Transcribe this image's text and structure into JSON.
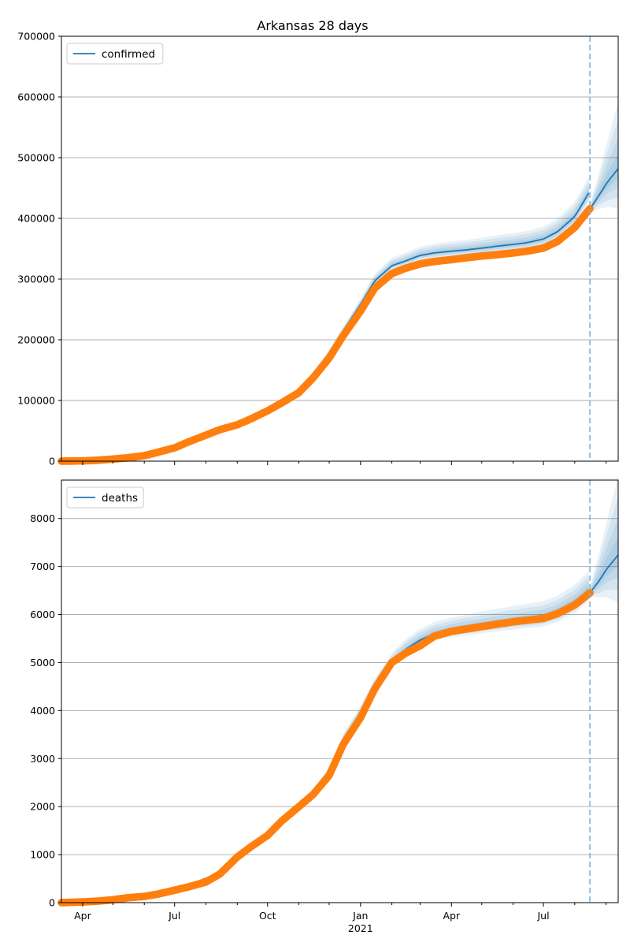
{
  "title": "Arkansas 28 days",
  "chart_data": [
    {
      "type": "line",
      "legend_label": "confirmed",
      "legend_placement": "upper-left",
      "grid": "horizontal",
      "ylim": [
        0,
        700000
      ],
      "yticks": [
        0,
        100000,
        200000,
        300000,
        400000,
        500000,
        600000,
        700000
      ],
      "forecast_start": "2021-08-16",
      "model_mean": [
        [
          "2020-03-11",
          0
        ],
        [
          "2020-04-15",
          1000
        ],
        [
          "2020-05-15",
          5000
        ],
        [
          "2020-06-15",
          17000
        ],
        [
          "2020-07-15",
          34000
        ],
        [
          "2020-08-15",
          53000
        ],
        [
          "2020-09-15",
          73000
        ],
        [
          "2020-10-15",
          98000
        ],
        [
          "2020-11-01",
          118000
        ],
        [
          "2020-11-15",
          142000
        ],
        [
          "2020-12-01",
          178000
        ],
        [
          "2020-12-15",
          215000
        ],
        [
          "2021-01-01",
          258000
        ],
        [
          "2021-01-15",
          297000
        ],
        [
          "2021-02-01",
          322000
        ],
        [
          "2021-02-15",
          330000
        ],
        [
          "2021-03-01",
          339000
        ],
        [
          "2021-03-15",
          343000
        ],
        [
          "2021-04-01",
          346000
        ],
        [
          "2021-04-15",
          348000
        ],
        [
          "2021-05-01",
          351000
        ],
        [
          "2021-05-15",
          354000
        ],
        [
          "2021-06-01",
          357000
        ],
        [
          "2021-06-15",
          360000
        ],
        [
          "2021-07-01",
          366000
        ],
        [
          "2021-07-15",
          378000
        ],
        [
          "2021-08-01",
          403000
        ],
        [
          "2021-08-15",
          442000
        ]
      ],
      "forecast_mean": [
        [
          "2021-08-16",
          415000
        ],
        [
          "2021-08-25",
          438000
        ],
        [
          "2021-09-02",
          459000
        ],
        [
          "2021-09-13",
          482000
        ]
      ],
      "observed": [
        [
          "2020-03-11",
          0
        ],
        [
          "2020-04-01",
          500
        ],
        [
          "2020-04-15",
          1500
        ],
        [
          "2020-05-01",
          3500
        ],
        [
          "2020-05-15",
          5500
        ],
        [
          "2020-06-01",
          9000
        ],
        [
          "2020-06-15",
          15000
        ],
        [
          "2020-07-01",
          22000
        ],
        [
          "2020-07-15",
          32000
        ],
        [
          "2020-08-01",
          43000
        ],
        [
          "2020-08-15",
          52000
        ],
        [
          "2020-09-01",
          60000
        ],
        [
          "2020-09-15",
          70000
        ],
        [
          "2020-10-01",
          83000
        ],
        [
          "2020-10-15",
          96000
        ],
        [
          "2020-11-01",
          113000
        ],
        [
          "2020-11-15",
          137000
        ],
        [
          "2020-12-01",
          170000
        ],
        [
          "2020-12-15",
          207000
        ],
        [
          "2021-01-01",
          247000
        ],
        [
          "2021-01-15",
          285000
        ],
        [
          "2021-02-01",
          309000
        ],
        [
          "2021-02-15",
          318000
        ],
        [
          "2021-03-01",
          325000
        ],
        [
          "2021-03-15",
          329000
        ],
        [
          "2021-04-01",
          332000
        ],
        [
          "2021-04-15",
          335000
        ],
        [
          "2021-05-01",
          338000
        ],
        [
          "2021-05-15",
          340000
        ],
        [
          "2021-06-01",
          343000
        ],
        [
          "2021-06-15",
          346000
        ],
        [
          "2021-07-01",
          351000
        ],
        [
          "2021-07-15",
          362000
        ],
        [
          "2021-08-01",
          385000
        ],
        [
          "2021-08-16",
          416000
        ]
      ]
    },
    {
      "type": "line",
      "legend_label": "deaths",
      "legend_placement": "upper-left",
      "grid": "horizontal",
      "ylim": [
        0,
        8800
      ],
      "yticks": [
        0,
        1000,
        2000,
        3000,
        4000,
        5000,
        6000,
        7000,
        8000
      ],
      "forecast_start": "2021-08-16",
      "model_mean": [
        [
          "2020-03-11",
          0
        ],
        [
          "2020-04-15",
          30
        ],
        [
          "2020-05-15",
          100
        ],
        [
          "2020-06-15",
          180
        ],
        [
          "2020-07-15",
          370
        ],
        [
          "2020-08-15",
          620
        ],
        [
          "2020-09-15",
          1170
        ],
        [
          "2020-10-15",
          1700
        ],
        [
          "2020-11-15",
          2250
        ],
        [
          "2020-12-01",
          2750
        ],
        [
          "2020-12-15",
          3400
        ],
        [
          "2021-01-01",
          3950
        ],
        [
          "2021-01-15",
          4500
        ],
        [
          "2021-02-01",
          5000
        ],
        [
          "2021-02-15",
          5280
        ],
        [
          "2021-03-01",
          5470
        ],
        [
          "2021-03-15",
          5600
        ],
        [
          "2021-04-01",
          5680
        ],
        [
          "2021-05-01",
          5780
        ],
        [
          "2021-06-01",
          5870
        ],
        [
          "2021-07-01",
          5950
        ],
        [
          "2021-07-15",
          6050
        ],
        [
          "2021-08-01",
          6250
        ],
        [
          "2021-08-15",
          6520
        ]
      ],
      "forecast_mean": [
        [
          "2021-08-16",
          6450
        ],
        [
          "2021-08-25",
          6700
        ],
        [
          "2021-09-02",
          6960
        ],
        [
          "2021-09-13",
          7240
        ]
      ],
      "observed": [
        [
          "2020-03-11",
          0
        ],
        [
          "2020-04-01",
          15
        ],
        [
          "2020-04-15",
          30
        ],
        [
          "2020-05-01",
          60
        ],
        [
          "2020-05-15",
          100
        ],
        [
          "2020-06-01",
          130
        ],
        [
          "2020-06-15",
          180
        ],
        [
          "2020-07-01",
          260
        ],
        [
          "2020-07-15",
          330
        ],
        [
          "2020-08-01",
          430
        ],
        [
          "2020-08-15",
          600
        ],
        [
          "2020-09-01",
          950
        ],
        [
          "2020-09-15",
          1170
        ],
        [
          "2020-10-01",
          1400
        ],
        [
          "2020-10-15",
          1700
        ],
        [
          "2020-11-01",
          2000
        ],
        [
          "2020-11-15",
          2250
        ],
        [
          "2020-12-01",
          2650
        ],
        [
          "2020-12-15",
          3300
        ],
        [
          "2021-01-01",
          3850
        ],
        [
          "2021-01-15",
          4450
        ],
        [
          "2021-02-01",
          5000
        ],
        [
          "2021-02-15",
          5200
        ],
        [
          "2021-03-01",
          5350
        ],
        [
          "2021-03-15",
          5550
        ],
        [
          "2021-04-01",
          5650
        ],
        [
          "2021-05-01",
          5750
        ],
        [
          "2021-06-01",
          5850
        ],
        [
          "2021-07-01",
          5920
        ],
        [
          "2021-07-15",
          6020
        ],
        [
          "2021-08-01",
          6200
        ],
        [
          "2021-08-16",
          6450
        ]
      ]
    }
  ],
  "xaxis": {
    "xlim": [
      "2020-03-11",
      "2021-09-13"
    ],
    "major_ticks": [
      {
        "date": "2020-04-01",
        "label": "Apr"
      },
      {
        "date": "2020-07-01",
        "label": "Jul"
      },
      {
        "date": "2020-10-01",
        "label": "Oct"
      },
      {
        "date": "2021-01-01",
        "label": "Jan"
      },
      {
        "date": "2021-04-01",
        "label": "Apr"
      },
      {
        "date": "2021-07-01",
        "label": "Jul"
      }
    ],
    "year_label": "2021"
  },
  "colors": {
    "line": "#1f77b4",
    "observed": "#ff7f0e",
    "band": "#1f77b4",
    "grid": "#b0b0b0",
    "forecast_line": "#7fb2d6"
  }
}
